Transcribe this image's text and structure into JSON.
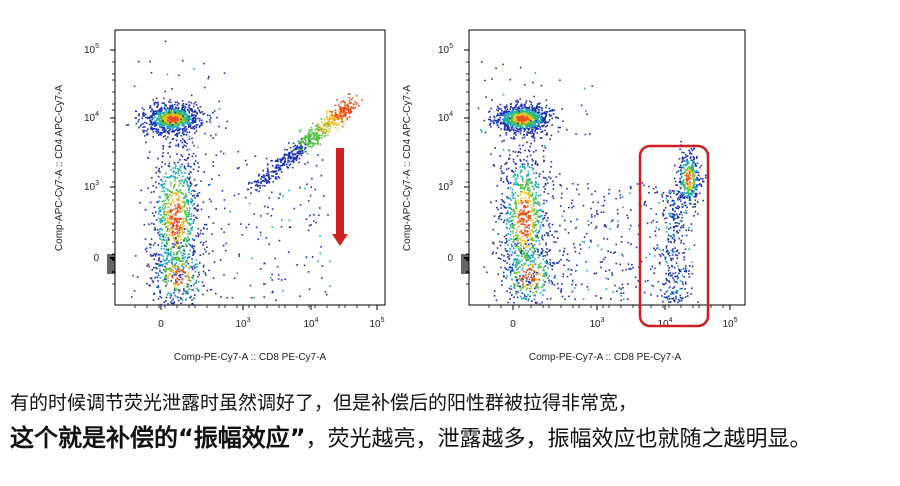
{
  "panels": [
    {
      "id": "left",
      "ylabel": "Comp-APC-Cy7-A :: CD4 APC-Cy7-A",
      "xlabel": "Comp-PE-Cy7-A :: CD8 PE-Cy7-A",
      "annotation": "red-down-arrow"
    },
    {
      "id": "right",
      "ylabel": "Comp-APC-Cy7-A :: CD4 APC-Cy7-A",
      "xlabel": "Comp-PE-Cy7-A :: CD8 PE-Cy7-A",
      "annotation": "red-gate-box"
    }
  ],
  "chart_data": [
    {
      "type": "scatter",
      "xlabel": "Comp-PE-Cy7-A :: CD8 PE-Cy7-A",
      "ylabel": "Comp-APC-Cy7-A :: CD4 APC-Cy7-A",
      "scale": "biexponential",
      "xticks": [
        "0",
        "10³",
        "10⁴",
        "10⁵"
      ],
      "yticks": [
        "0",
        "10³",
        "10⁴",
        "10⁵"
      ],
      "populations": [
        {
          "name": "CD4+",
          "x": 0,
          "y": 12000,
          "density": "high"
        },
        {
          "name": "double-negative",
          "x": 0,
          "y": 300,
          "density": "medium"
        },
        {
          "name": "CD8+ spread diagonal",
          "x_range": [
            1000,
            40000
          ],
          "y_range": [
            500,
            20000
          ],
          "density": "medium"
        }
      ]
    },
    {
      "type": "scatter",
      "xlabel": "Comp-PE-Cy7-A :: CD8 PE-Cy7-A",
      "ylabel": "Comp-APC-Cy7-A :: CD4 APC-Cy7-A",
      "scale": "biexponential",
      "xticks": [
        "0",
        "10³",
        "10⁴",
        "10⁵"
      ],
      "yticks": [
        "0",
        "10³",
        "10⁴",
        "10⁵"
      ],
      "populations": [
        {
          "name": "CD4+",
          "x": 0,
          "y": 12000,
          "density": "high"
        },
        {
          "name": "double-negative",
          "x": 0,
          "y": 300,
          "density": "medium"
        },
        {
          "name": "CD8+ spread vertical",
          "x": 30000,
          "y_range": [
            -500,
            3000
          ],
          "density": "medium"
        }
      ]
    }
  ],
  "captions": {
    "line1": "有的时候调节荧光泄露时虽然调好了，但是补偿后的阳性群被拉得非常宽，",
    "line2_bold": "这个就是补偿的“振幅效应”",
    "line2_rest": "，荧光越亮，泄露越多，振幅效应也就随之越明显。"
  },
  "colors": {
    "arrow": "#d42020",
    "gate": "#cc1f1f",
    "axis": "#000000"
  }
}
